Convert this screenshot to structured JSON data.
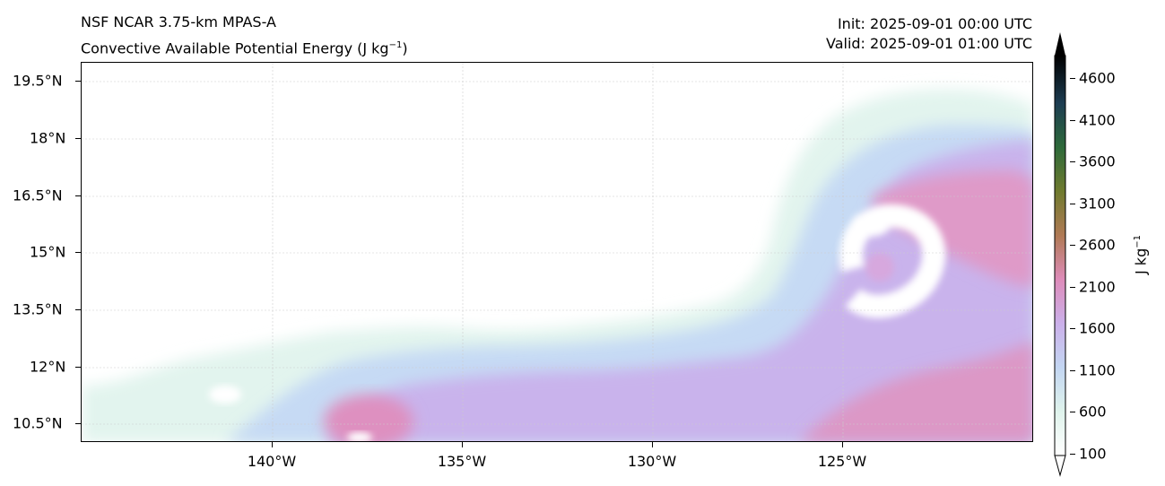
{
  "header": {
    "model_title": "NSF NCAR 3.75-km MPAS-A",
    "field_title": "Convective Available Potential Energy (J kg",
    "field_unit_exp": "−1",
    "field_title_end": ")",
    "init_time": "Init: 2025-09-01 00:00 UTC",
    "valid_time": "Valid: 2025-09-01 01:00 UTC"
  },
  "map": {
    "lat_labels": [
      "19.5°N",
      "18°N",
      "16.5°N",
      "15°N",
      "13.5°N",
      "12°N",
      "10.5°N"
    ],
    "lon_labels": [
      "140°W",
      "135°W",
      "130°W",
      "125°W"
    ],
    "gridlines": true
  },
  "colorbar": {
    "title": "J kg",
    "title_exp": "−1",
    "ticks": [
      "4600",
      "4100",
      "3600",
      "3100",
      "2600",
      "2100",
      "1600",
      "1100",
      "600",
      "100"
    ],
    "colors": {
      "low": "#ffffff",
      "c600": "#dff3ec",
      "c1100": "#c3d6f2",
      "c1600": "#cbb0ea",
      "c2100": "#de8cba",
      "c2600": "#b07a55",
      "c3100": "#6f7a2e",
      "c3600": "#2e6a3a",
      "c4100": "#1d3d52",
      "c4600": "#1b1530",
      "high": "#000000"
    }
  }
}
